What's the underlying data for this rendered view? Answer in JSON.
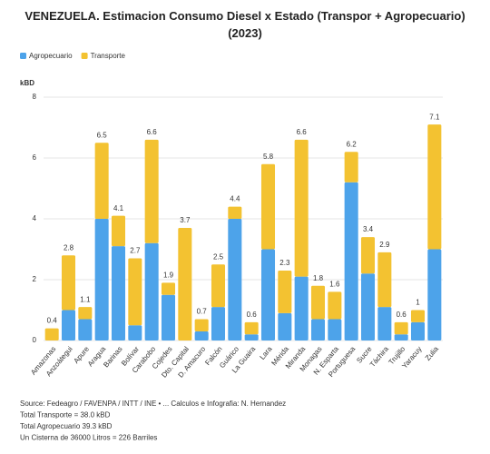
{
  "chart_data": {
    "type": "stacked_bar",
    "title": "VENEZUELA. Estimacion Consumo Diesel x Estado (Transpor + Agropecuario) (2023)",
    "y_label": "kBD",
    "categories": [
      "Amazonas",
      "Anzoátegui",
      "Apure",
      "Aragua",
      "Barinas",
      "Bolívar",
      "Carabobo",
      "Cojedes",
      "Dto. Capital",
      "D. Amacuro",
      "Falcón",
      "Guárico",
      "La Guaira",
      "Lara",
      "Mérida",
      "Miranda",
      "Monagas",
      "N. Esparta",
      "Portuguesa",
      "Sucre",
      "Táchira",
      "Trujillo",
      "Yaracuy",
      "Zulia"
    ],
    "series": [
      {
        "name": "Agropecuario",
        "color": "#4da3ea",
        "values": [
          0,
          1.0,
          0.7,
          4.0,
          3.1,
          0.5,
          3.2,
          1.5,
          0,
          0.3,
          1.1,
          4.0,
          0.2,
          3.0,
          0.9,
          2.1,
          0.7,
          0.7,
          5.2,
          2.2,
          1.1,
          0.2,
          0.6,
          3.0
        ]
      },
      {
        "name": "Transporte",
        "color": "#f3c231",
        "values": [
          0.4,
          1.8,
          0.4,
          2.5,
          1.0,
          2.2,
          3.4,
          0.4,
          3.7,
          0.4,
          1.4,
          0.4,
          0.4,
          2.8,
          1.4,
          4.5,
          1.1,
          0.9,
          1.0,
          1.2,
          1.8,
          0.4,
          0.4,
          4.1
        ]
      }
    ],
    "totals": [
      0.4,
      2.8,
      1.1,
      6.5,
      4.1,
      2.7,
      6.6,
      1.9,
      3.7,
      0.7,
      2.5,
      4.4,
      0.6,
      5.8,
      2.3,
      6.6,
      1.8,
      1.6,
      6.2,
      3.4,
      2.9,
      0.6,
      1,
      7.1
    ],
    "ylim": [
      0,
      8
    ],
    "yticks": [
      0,
      2,
      4,
      6,
      8
    ],
    "grid": true,
    "legend": "top-left",
    "notes": [
      "Source: Fedeagro / FAVENPA / INTT / INE • ... Calculos e Infografia: N. Hernandez",
      "Total Transporte = 38.0 kBD",
      "Total Agropecuario 39.3 kBD",
      "Un Cisterna de 36000 Litros = 226 Barriles"
    ]
  }
}
